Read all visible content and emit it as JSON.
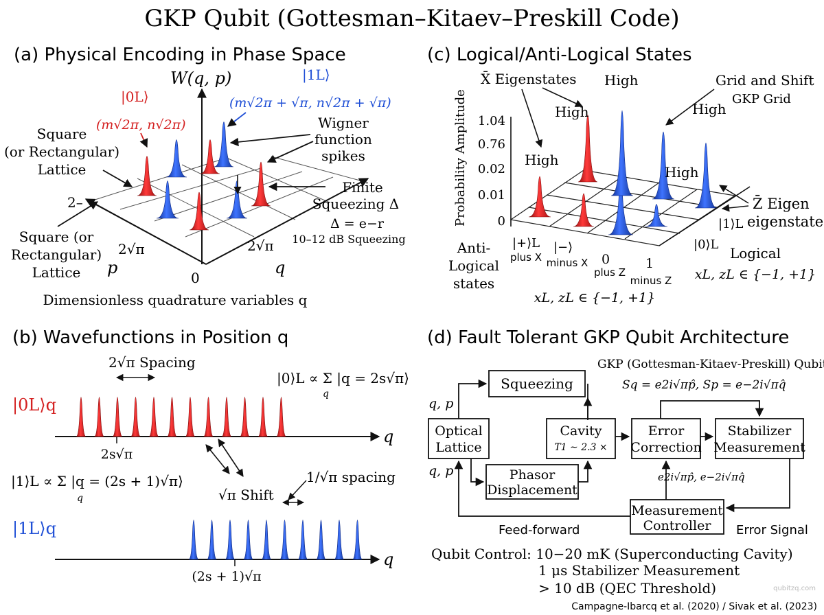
{
  "title": "GKP Qubit (Gottesman–Kitaev–Preskill Code)",
  "colors": {
    "red": "#d42020",
    "blue": "#1f4fd6",
    "dark": "#111111",
    "grid": "#555555"
  },
  "panel_a": {
    "heading": "(a) Physical Encoding in Phase Space",
    "axis_w": "W(q, p)",
    "axis_q": "q",
    "axis_p": "p",
    "state0_label": "|0L⟩",
    "state0_coords": "(m√2π, n√2π)",
    "state1_label": "|1L⟩",
    "state1_coords": "(m√2π + √π, n√2π + √π)",
    "lattice_label": [
      "Square",
      "(or Rectangular)",
      "Lattice"
    ],
    "lattice_label_2": [
      "Square (or",
      "Rectangular)",
      "Lattice"
    ],
    "wigner_label": [
      "Wigner",
      "function",
      "spikes"
    ],
    "squeezing_label": [
      "Finite",
      "Squeezing Δ"
    ],
    "squeezing_eq": "Δ = e−r",
    "squeezing_db": "10–12 dB Squeezing",
    "tick_p2": "2–",
    "tick_p_sqrt": "2√π",
    "tick_q_sqrt": "2√π",
    "tick_zero": "0",
    "xlabel": "Dimensionless quadrature variables q"
  },
  "panel_b": {
    "heading": "(b) Wavefunctions in Position q",
    "spacing_label": "2√π Spacing",
    "eq0": "|0⟩L ∝ Σ |q = 2s√π⟩",
    "eq0_sub": "q",
    "row0_label": "|0L⟩q",
    "tick0": "2s√π",
    "eq1": "|1⟩L ∝ Σ |q = (2s + 1)√π⟩",
    "eq1_sub": "q",
    "shift_label": "√π Shift",
    "spacing2_label": "1/√π spacing",
    "row1_label": "|1L⟩q",
    "tick1": "(2s + 1)√π",
    "axis_q": "q"
  },
  "panel_c": {
    "heading": "(c) Logical/Anti-Logical States",
    "ylabel": "Probability Amplitude",
    "y_ticks": [
      "1.04",
      "0.76",
      "0.02",
      "0.01",
      "0"
    ],
    "xbar_label": "X̄ Eigenstates",
    "high_labels": [
      "High",
      "High",
      "High",
      "High",
      "High"
    ],
    "grid_label": [
      "Grid and Shift",
      "GKP Grid"
    ],
    "zbar_label": [
      "Z̄ Eigen",
      "eigenstates"
    ],
    "ket1": "|1⟩L",
    "ket0": "|0⟩L",
    "logical_label": "Logical",
    "logical_set": "xL, zL ∈ {−1, +1}",
    "anti_label": [
      "Anti-",
      "Logical",
      "states"
    ],
    "x_ticks": [
      {
        "top": "|+⟩L",
        "bottom": "plus X"
      },
      {
        "top": "|−⟩",
        "bottom": "minus X"
      },
      {
        "top": "0",
        "bottom": "plus Z"
      },
      {
        "top": "1",
        "bottom": "minus Z"
      }
    ],
    "bottom_set": "xL, zL ∈ {−1, +1}"
  },
  "panel_d": {
    "heading": "(d) Fault Tolerant GKP Qubit Architecture",
    "subtitle": "GKP (Gottesman-Kitaev-Preskill) Qubit",
    "stabilizers": "Sq = e2i√πp̂, Sp = e−2i√πq̂",
    "boxes": {
      "squeezing": "Squeezing",
      "optical": [
        "Optical",
        "Lattice"
      ],
      "cavity": "Cavity",
      "cavity_t1": "T1 ∼ 2.3 ×",
      "error_correction": [
        "Error",
        "Correction"
      ],
      "stabilizer": [
        "Stabilizer",
        "Measurement"
      ],
      "phasor": [
        "Phasor",
        "Displacement"
      ],
      "measurement": [
        "Measurement",
        "Controller"
      ]
    },
    "qp_top": "q, p",
    "qp_bottom": "q, p",
    "edge_ops": "e2i√πp̂, e−2i√πq̂",
    "feed_forward": "Feed-forward",
    "error_signal": "Error Signal",
    "control_lines": [
      "Qubit Control: 10−20 mK (Superconducting Cavity)",
      "1 μs Stabilizer Measurement",
      "> 10 dB (QEC Threshold)"
    ]
  },
  "citation": "Campagne-Ibarcq et al. (2020) / Sivak et al. (2023)",
  "watermark": "qubitzq.com"
}
